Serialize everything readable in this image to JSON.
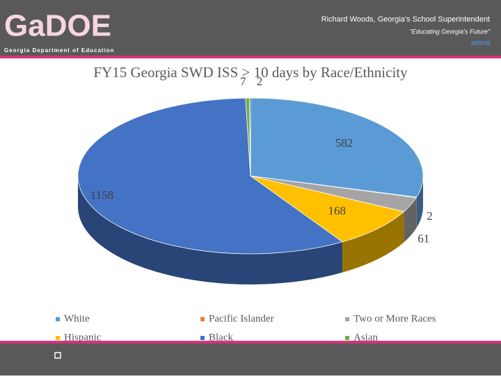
{
  "header": {
    "name": "Richard Woods, Georgia’s School Superintendent",
    "motto": "“Educating Georgia’s Future”",
    "link": "gadoe.org"
  },
  "logo": {
    "text": "GaDOE",
    "subtitle": "Georgia Department of Education"
  },
  "chart_data": {
    "type": "pie",
    "title": "FY15 Georgia SWD ISS > 10 days by Race/Ethnicity",
    "categories": [
      "White",
      "Pacific Islander",
      "Two or More Races",
      "Hispanic",
      "Black",
      "Asian",
      null
    ],
    "values": [
      582,
      2,
      61,
      168,
      1158,
      7,
      2
    ],
    "colors": [
      "#5b9bd5",
      "#ed7d31",
      "#a5a5a5",
      "#ffc000",
      "#4472c4",
      "#70ad47",
      "#264478"
    ],
    "legend": "bottom"
  }
}
